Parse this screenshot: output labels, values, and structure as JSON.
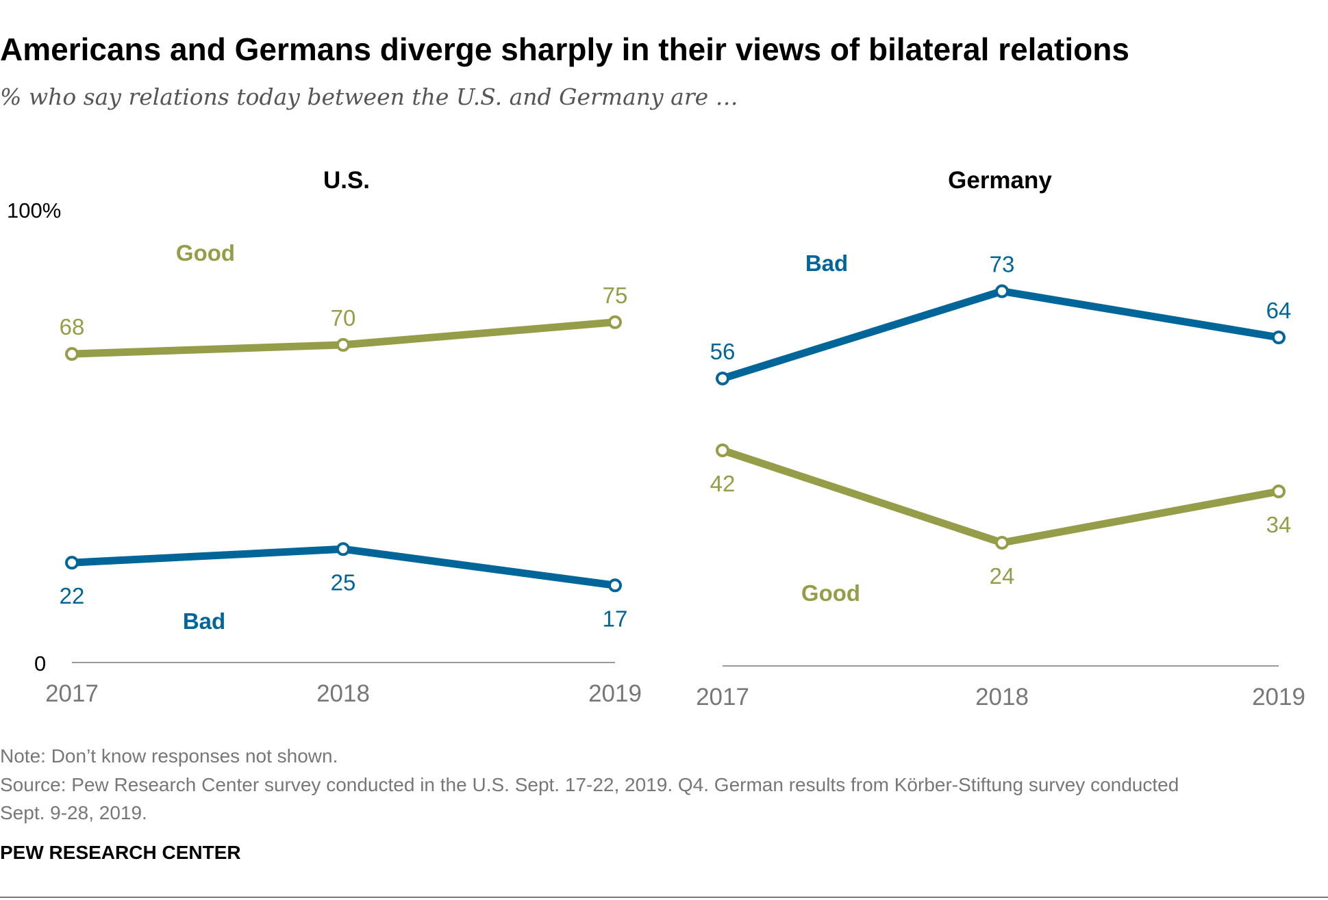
{
  "title": "Americans and Germans diverge sharply in their views of bilateral relations",
  "subtitle": "% who say relations today between the U.S. and Germany are …",
  "colors": {
    "good": "#959D48",
    "bad": "#00669A",
    "axis": "#999999"
  },
  "chart_data": [
    {
      "type": "line",
      "title": "U.S.",
      "x": [
        "2017",
        "2018",
        "2019"
      ],
      "ylim": [
        0,
        100
      ],
      "y_tick_labels": [
        "0",
        "100%"
      ],
      "grid": false,
      "series": [
        {
          "name": "Good",
          "key": "good",
          "values": [
            68,
            70,
            75
          ]
        },
        {
          "name": "Bad",
          "key": "bad",
          "values": [
            22,
            25,
            17
          ]
        }
      ]
    },
    {
      "type": "line",
      "title": "Germany",
      "x": [
        "2017",
        "2018",
        "2019"
      ],
      "ylim": [
        0,
        100
      ],
      "grid": false,
      "series": [
        {
          "name": "Bad",
          "key": "bad",
          "values": [
            56,
            73,
            64
          ]
        },
        {
          "name": "Good",
          "key": "good",
          "values": [
            42,
            24,
            34
          ]
        }
      ]
    }
  ],
  "footer": {
    "note": "Note: Don’t know responses not shown.",
    "source_line1": "Source: Pew Research Center survey conducted in the U.S. Sept. 17-22, 2019. Q4. German results from Körber-Stiftung survey conducted",
    "source_line2": "Sept. 9-28, 2019.",
    "brand": "PEW RESEARCH CENTER"
  }
}
